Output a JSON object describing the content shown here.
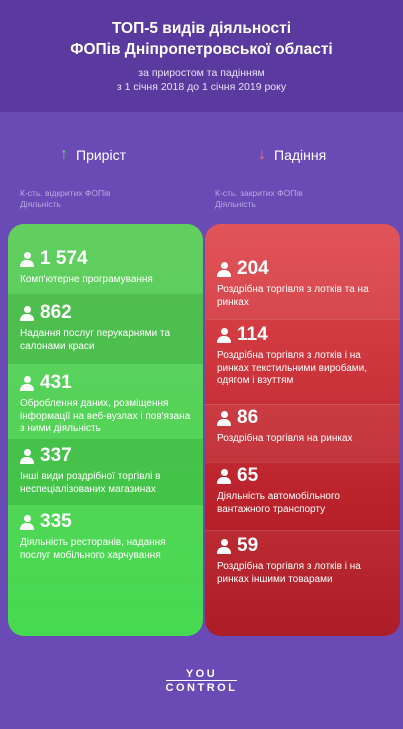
{
  "header": {
    "title_line1": "ТОП-5 видів діяльності",
    "title_line2": "ФОПів Дніпропетровської області",
    "subtitle_line1": "за приростом та падінням",
    "subtitle_line2": "з 1 січня 2018 до 1 січня 2019 року"
  },
  "growth": {
    "heading": "Приріст",
    "caption_line1": "К-сть. відкритих ФОПів",
    "caption_line2": "Діяльність",
    "items": [
      {
        "value": "1 574",
        "label": "Комп'ютерне програмування"
      },
      {
        "value": "862",
        "label": "Надання послуг перукарнями та салонами краси"
      },
      {
        "value": "431",
        "label": "Оброблення даних, розміщення інформації на веб-вузлах і пов'язана з ними діяльність"
      },
      {
        "value": "337",
        "label": "Інші види роздрібної торгівлі в неспеціалізованих магазинах"
      },
      {
        "value": "335",
        "label": "Діяльність ресторанів, надання послуг мобільного харчування"
      }
    ]
  },
  "decline": {
    "heading": "Падіння",
    "caption_line1": "К-сть. закритих ФОПів",
    "caption_line2": "Діяльність",
    "items": [
      {
        "value": "204",
        "label": "Роздрібна торгівля з лотків та на ринках"
      },
      {
        "value": "114",
        "label": "Роздрібна торгівля з лотків і на ринках текстильними виробами, одягом і взуттям"
      },
      {
        "value": "86",
        "label": "Роздрібна торгівля на ринках"
      },
      {
        "value": "65",
        "label": "Діяльність автомобільного вантажного транспорту"
      },
      {
        "value": "59",
        "label": "Роздрібна торгівля з лотків і на ринках іншими товарами"
      }
    ]
  },
  "logo": {
    "line1": "YOU",
    "line2": "CONTROL"
  },
  "colors": {
    "background": "#6a4bb5",
    "header": "#5a3a9e",
    "growth_top": "#5ccc5a",
    "growth_bottom": "#3fd94a",
    "decline_top": "#e04a4f",
    "decline_bottom": "#a80f1a"
  }
}
